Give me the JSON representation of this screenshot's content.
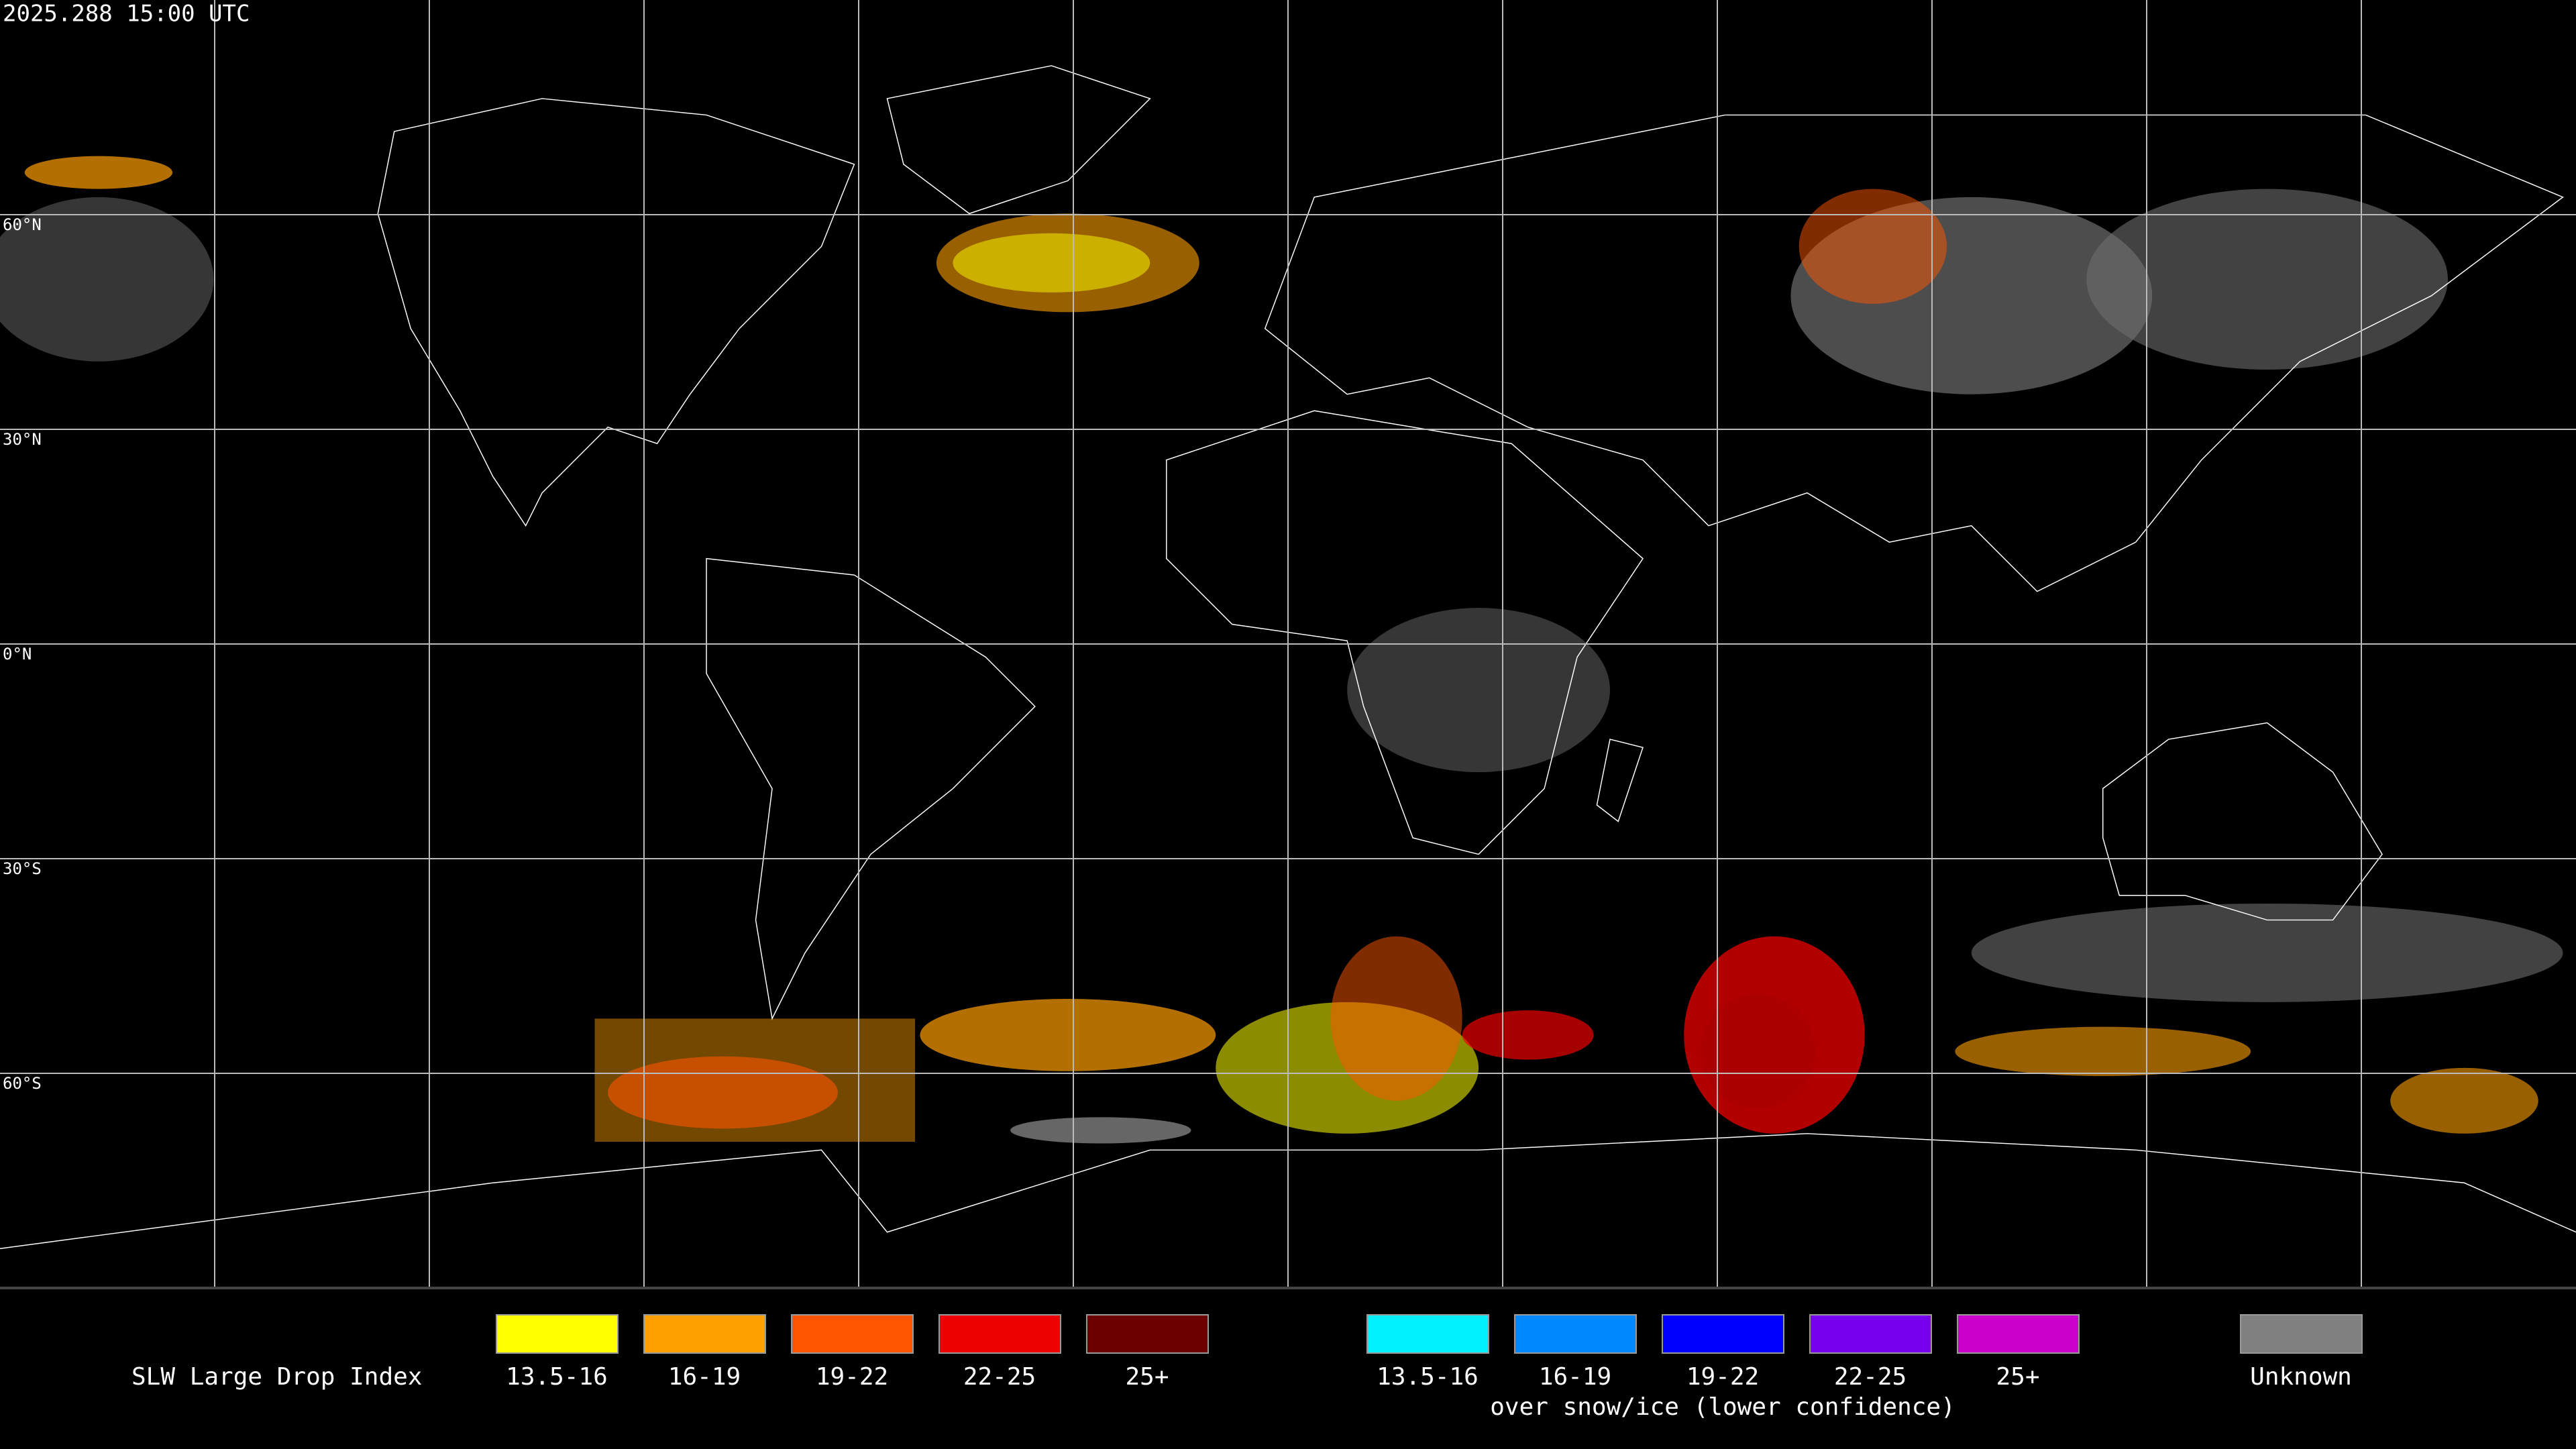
{
  "header": {
    "timestamp": "2025.288 15:00 UTC"
  },
  "map": {
    "latitude_labels": [
      "60°N",
      "30°N",
      "0°N",
      "30°S",
      "60°S"
    ]
  },
  "legend": {
    "title": "SLW Large Drop Index",
    "groups": [
      {
        "items": [
          {
            "label": "13.5-16",
            "color": "#ffff00"
          },
          {
            "label": "16-19",
            "color": "#ffa000"
          },
          {
            "label": "19-22",
            "color": "#ff5500"
          },
          {
            "label": "22-25",
            "color": "#ee0000"
          },
          {
            "label": "25+",
            "color": "#6a0000"
          }
        ]
      },
      {
        "items": [
          {
            "label": "13.5-16",
            "color": "#00f0ff"
          },
          {
            "label": "16-19",
            "color": "#0088ff"
          },
          {
            "label": "19-22",
            "color": "#0000ff"
          },
          {
            "label": "22-25",
            "color": "#7700ee"
          },
          {
            "label": "25+",
            "color": "#cc00cc"
          }
        ],
        "caption": "over snow/ice (lower confidence)"
      },
      {
        "items": [
          {
            "label": "Unknown",
            "color": "#808080"
          }
        ]
      }
    ]
  }
}
